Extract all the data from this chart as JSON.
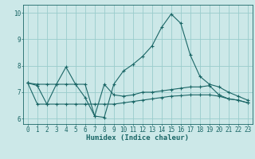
{
  "xlabel": "Humidex (Indice chaleur)",
  "xlim": [
    -0.5,
    23.5
  ],
  "ylim": [
    5.8,
    10.3
  ],
  "yticks": [
    6,
    7,
    8,
    9,
    10
  ],
  "xticks": [
    0,
    1,
    2,
    3,
    4,
    5,
    6,
    7,
    8,
    9,
    10,
    11,
    12,
    13,
    14,
    15,
    16,
    17,
    18,
    19,
    20,
    21,
    22,
    23
  ],
  "bg_color": "#cce8e8",
  "grid_color": "#99cccc",
  "line_color": "#1a6666",
  "line1_y": [
    7.35,
    7.3,
    7.3,
    7.3,
    7.95,
    7.3,
    7.3,
    6.1,
    6.05,
    7.3,
    7.8,
    8.05,
    8.35,
    8.75,
    9.45,
    9.95,
    9.6,
    8.4,
    7.6,
    7.3,
    7.2,
    7.0,
    6.85,
    6.7
  ],
  "line2_y": [
    7.35,
    7.25,
    6.55,
    7.3,
    7.3,
    7.3,
    6.8,
    6.1,
    7.3,
    6.9,
    6.85,
    6.9,
    7.0,
    7.0,
    7.05,
    7.1,
    7.15,
    7.2,
    7.2,
    7.25,
    6.9,
    6.75,
    6.7,
    6.6
  ],
  "line3_y": [
    7.35,
    6.55,
    6.55,
    6.55,
    6.55,
    6.55,
    6.55,
    6.55,
    6.55,
    6.55,
    6.6,
    6.65,
    6.7,
    6.75,
    6.8,
    6.85,
    6.87,
    6.9,
    6.9,
    6.9,
    6.85,
    6.75,
    6.7,
    6.6
  ],
  "tick_labelsize": 5.5,
  "xlabel_fontsize": 6.5
}
